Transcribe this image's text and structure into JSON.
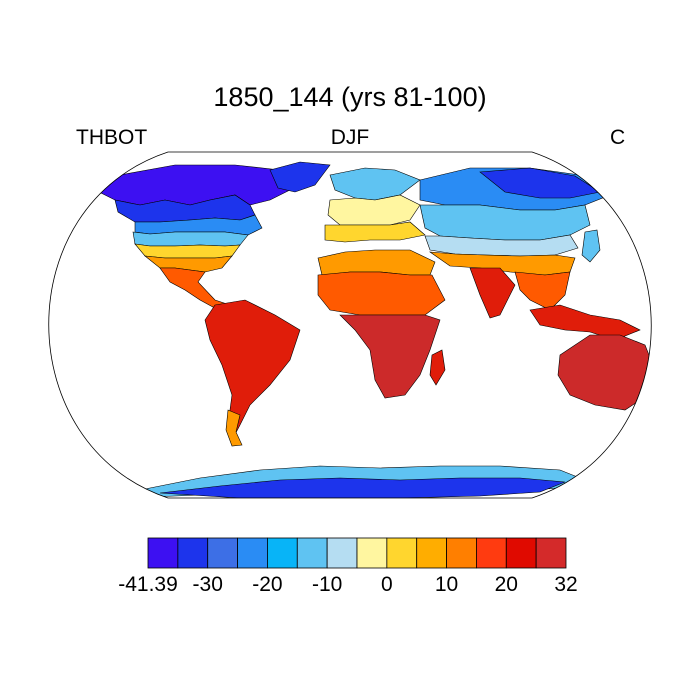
{
  "title": "1850_144 (yrs 81-100)",
  "left_label": "THBOT",
  "center_label": "DJF",
  "right_label": "C",
  "colorbar": {
    "colors": [
      "#3d10f2",
      "#1d34ec",
      "#3d6fe6",
      "#2a8cf4",
      "#08b4f7",
      "#5fc3f2",
      "#b5ddf2",
      "#fff6a0",
      "#ffd62e",
      "#ffad00",
      "#ff7f00",
      "#ff3b10",
      "#e00a00",
      "#d42a2a"
    ],
    "labels": [
      "-41.39",
      "-30",
      "-20",
      "-10",
      "0",
      "10",
      "20",
      "32"
    ],
    "label_box_index": [
      0,
      2,
      4,
      6,
      8,
      10,
      12,
      14
    ]
  },
  "map_colors": {
    "hot": "#e01d0a",
    "dark_hot": "#cc2a2a",
    "warm": "#ff5a00",
    "orange": "#ff9a00",
    "yellow": "#ffd62e",
    "pale_yellow": "#fff6a0",
    "pale_blue": "#b5ddf2",
    "light_blue": "#5fc3f2",
    "mid_blue": "#2a8cf4",
    "blue": "#3d6fe6",
    "deep_blue": "#1d34ec",
    "violet": "#3d10f2"
  }
}
